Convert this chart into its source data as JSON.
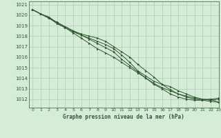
{
  "title": "Graphe pression niveau de la mer (hPa)",
  "background_color": "#d4ecd8",
  "grid_color": "#b0ccb4",
  "line_color": "#2d5a2d",
  "marker_color": "#2d5a2d",
  "xlim": [
    -0.5,
    23
  ],
  "ylim": [
    1011.2,
    1021.3
  ],
  "yticks": [
    1012,
    1013,
    1014,
    1015,
    1016,
    1017,
    1018,
    1019,
    1020,
    1021
  ],
  "xticks": [
    0,
    1,
    2,
    3,
    4,
    5,
    6,
    7,
    8,
    9,
    10,
    11,
    12,
    13,
    14,
    15,
    16,
    17,
    18,
    19,
    20,
    21,
    22,
    23
  ],
  "series": [
    [
      1020.5,
      1020.1,
      1019.8,
      1019.2,
      1018.8,
      1018.4,
      1018.1,
      1017.8,
      1017.5,
      1017.2,
      1016.8,
      1016.2,
      1015.5,
      1014.7,
      1014.2,
      1013.7,
      1013.4,
      1013.2,
      1012.8,
      1012.5,
      1012.2,
      1012.0,
      1012.0,
      1011.7
    ],
    [
      1020.5,
      1020.1,
      1019.8,
      1019.3,
      1018.9,
      1018.5,
      1018.2,
      1018.0,
      1017.8,
      1017.5,
      1017.0,
      1016.5,
      1016.0,
      1015.3,
      1014.7,
      1014.1,
      1013.4,
      1012.9,
      1012.5,
      1012.3,
      1012.1,
      1012.0,
      1011.9,
      1012.0
    ],
    [
      1020.5,
      1020.1,
      1019.7,
      1019.3,
      1018.9,
      1018.5,
      1018.1,
      1017.7,
      1017.3,
      1016.9,
      1016.5,
      1015.8,
      1015.2,
      1014.6,
      1014.0,
      1013.4,
      1013.0,
      1012.5,
      1012.2,
      1012.0,
      1011.9,
      1011.9,
      1012.0,
      1012.1
    ],
    [
      1020.5,
      1020.1,
      1019.7,
      1019.2,
      1018.8,
      1018.3,
      1017.8,
      1017.3,
      1016.8,
      1016.4,
      1016.0,
      1015.5,
      1015.0,
      1014.5,
      1014.0,
      1013.5,
      1013.1,
      1012.8,
      1012.5,
      1012.2,
      1012.0,
      1011.9,
      1011.8,
      1011.7
    ]
  ]
}
